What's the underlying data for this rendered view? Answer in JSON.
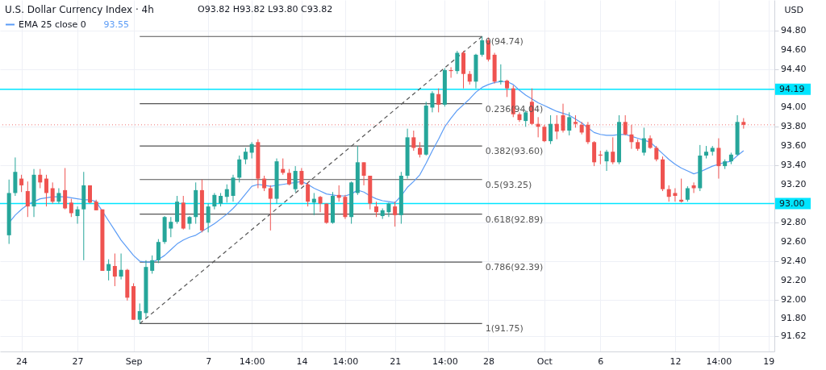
{
  "chart_data": {
    "type": "candlestick",
    "title": "U.S. Dollar Currency Index · 4h",
    "ylabel": "USD",
    "annotations": [
      "O93.82 H93.82 L93.80 C93.82",
      "93.55"
    ],
    "categories": [
      null,
      null,
      "24",
      null,
      null,
      null,
      null,
      null,
      null,
      null,
      null,
      "27",
      null,
      null,
      null,
      null,
      null,
      null,
      null,
      null,
      "Sep",
      null,
      null,
      null,
      null,
      null,
      null,
      null,
      null,
      null,
      null,
      null,
      "7",
      null,
      null,
      null,
      null,
      null,
      null,
      "14:00",
      null,
      null,
      null,
      null,
      null,
      null,
      null,
      "14",
      null,
      null,
      null,
      null,
      null,
      null,
      "14:00",
      null,
      null,
      null,
      null,
      null,
      null,
      null,
      "21",
      null,
      null,
      null,
      null,
      null,
      null,
      null,
      "14:00",
      null,
      null,
      null,
      null,
      null,
      null,
      "28",
      null,
      null,
      null,
      null,
      null,
      null,
      null,
      null,
      "Oct",
      null,
      null,
      null,
      null,
      null,
      null,
      null,
      null,
      "6",
      null,
      null,
      null,
      null,
      null,
      null,
      null,
      null,
      null,
      null,
      null,
      "12",
      null,
      null,
      null,
      null,
      null,
      null,
      "14:00",
      null,
      null,
      null,
      null,
      null,
      null,
      null,
      "19"
    ],
    "ohlc": [
      [
        92.67,
        93.25,
        92.58,
        93.11
      ],
      [
        93.11,
        93.48,
        93.08,
        93.33
      ],
      [
        93.26,
        93.3,
        93.12,
        93.19
      ],
      [
        93.13,
        93.23,
        92.86,
        92.97
      ],
      [
        92.97,
        93.36,
        92.86,
        93.3
      ],
      [
        93.3,
        93.36,
        93.16,
        93.22
      ],
      [
        93.26,
        93.3,
        92.97,
        93.11
      ],
      [
        93.16,
        93.22,
        93.0,
        93.02
      ],
      [
        93.02,
        93.16,
        93.0,
        93.11
      ],
      [
        93.14,
        93.37,
        92.94,
        92.95
      ],
      [
        93.01,
        93.05,
        92.86,
        92.9
      ],
      [
        92.87,
        92.97,
        92.79,
        92.94
      ],
      [
        92.94,
        93.33,
        92.41,
        93.19
      ],
      [
        93.19,
        93.19,
        93.0,
        93.01
      ],
      [
        93.02,
        93.04,
        92.93,
        92.93
      ],
      [
        92.94,
        92.94,
        92.3,
        92.3
      ],
      [
        92.3,
        92.42,
        92.2,
        92.37
      ],
      [
        92.35,
        92.48,
        92.14,
        92.24
      ],
      [
        92.24,
        92.48,
        92.21,
        92.31
      ],
      [
        92.31,
        92.32,
        91.99,
        92.02
      ],
      [
        92.14,
        92.17,
        91.79,
        91.79
      ],
      [
        91.79,
        91.96,
        91.75,
        91.88
      ],
      [
        91.86,
        92.41,
        91.81,
        92.34
      ],
      [
        92.3,
        92.46,
        92.27,
        92.41
      ],
      [
        92.41,
        92.63,
        92.38,
        92.6
      ],
      [
        92.6,
        92.87,
        92.58,
        92.86
      ],
      [
        92.74,
        92.86,
        92.65,
        92.81
      ],
      [
        92.81,
        93.08,
        92.79,
        93.02
      ],
      [
        93.01,
        93.08,
        92.73,
        92.74
      ],
      [
        92.79,
        92.87,
        92.73,
        92.86
      ],
      [
        92.86,
        93.22,
        92.79,
        93.14
      ],
      [
        93.14,
        93.25,
        92.7,
        92.72
      ],
      [
        92.8,
        93.0,
        92.7,
        92.97
      ],
      [
        92.97,
        93.11,
        92.94,
        93.09
      ],
      [
        93.0,
        93.11,
        92.97,
        93.08
      ],
      [
        93.07,
        93.2,
        93.01,
        93.15
      ],
      [
        93.08,
        93.3,
        93.02,
        93.27
      ],
      [
        93.27,
        93.5,
        93.22,
        93.46
      ],
      [
        93.46,
        93.58,
        93.41,
        93.54
      ],
      [
        93.53,
        93.64,
        93.47,
        93.62
      ],
      [
        93.64,
        93.67,
        93.16,
        93.26
      ],
      [
        93.26,
        93.29,
        93.13,
        93.16
      ],
      [
        93.16,
        93.19,
        92.72,
        93.05
      ],
      [
        93.05,
        93.47,
        93.0,
        93.44
      ],
      [
        93.36,
        93.47,
        93.3,
        93.32
      ],
      [
        93.32,
        93.36,
        93.19,
        93.2
      ],
      [
        93.15,
        93.39,
        93.12,
        93.34
      ],
      [
        93.34,
        93.37,
        93.19,
        93.2
      ],
      [
        93.2,
        93.22,
        92.97,
        93.02
      ],
      [
        93.01,
        93.11,
        92.88,
        93.05
      ],
      [
        93.07,
        93.08,
        92.91,
        93.0
      ],
      [
        93.0,
        93.0,
        92.79,
        92.8
      ],
      [
        92.8,
        93.12,
        92.79,
        93.08
      ],
      [
        93.09,
        93.19,
        93.02,
        93.06
      ],
      [
        93.07,
        93.09,
        92.84,
        92.86
      ],
      [
        92.86,
        93.23,
        92.79,
        93.22
      ],
      [
        93.11,
        93.6,
        93.09,
        93.43
      ],
      [
        93.43,
        93.43,
        93.19,
        93.29
      ],
      [
        93.29,
        93.29,
        92.94,
        93.0
      ],
      [
        92.97,
        93.02,
        92.86,
        92.91
      ],
      [
        92.87,
        92.95,
        92.84,
        92.93
      ],
      [
        92.91,
        93.01,
        92.86,
        93.0
      ],
      [
        92.97,
        93.02,
        92.76,
        92.88
      ],
      [
        92.88,
        93.33,
        92.79,
        93.29
      ],
      [
        93.29,
        93.78,
        93.26,
        93.69
      ],
      [
        93.69,
        93.76,
        93.55,
        93.58
      ],
      [
        93.58,
        93.64,
        93.48,
        93.51
      ],
      [
        93.51,
        94.06,
        93.5,
        94.02
      ],
      [
        94.0,
        94.17,
        93.95,
        94.15
      ],
      [
        94.14,
        94.2,
        93.95,
        94.03
      ],
      [
        94.03,
        94.41,
        94.01,
        94.39
      ],
      [
        94.39,
        94.42,
        94.31,
        94.38
      ],
      [
        94.38,
        94.59,
        94.35,
        94.57
      ],
      [
        94.57,
        94.59,
        94.2,
        94.35
      ],
      [
        94.35,
        94.38,
        94.24,
        94.27
      ],
      [
        94.27,
        94.56,
        94.2,
        94.55
      ],
      [
        94.55,
        94.74,
        94.53,
        94.7
      ],
      [
        94.7,
        94.73,
        94.48,
        94.5
      ],
      [
        94.55,
        94.57,
        94.25,
        94.27
      ],
      [
        94.27,
        94.45,
        94.24,
        94.28
      ],
      [
        94.28,
        94.29,
        94.11,
        94.2
      ],
      [
        94.2,
        94.23,
        93.9,
        93.93
      ],
      [
        93.93,
        93.95,
        93.85,
        93.87
      ],
      [
        93.86,
        93.97,
        93.8,
        93.95
      ],
      [
        94.06,
        94.2,
        93.82,
        93.83
      ],
      [
        93.83,
        93.9,
        93.69,
        93.8
      ],
      [
        93.8,
        93.82,
        93.64,
        93.65
      ],
      [
        93.65,
        93.92,
        93.62,
        93.83
      ],
      [
        93.83,
        93.92,
        93.67,
        93.75
      ],
      [
        93.92,
        94.04,
        93.74,
        93.76
      ],
      [
        93.76,
        93.95,
        93.71,
        93.9
      ],
      [
        93.85,
        93.92,
        93.79,
        93.83
      ],
      [
        93.82,
        93.85,
        93.72,
        93.74
      ],
      [
        93.82,
        93.85,
        93.62,
        93.64
      ],
      [
        93.64,
        93.65,
        93.39,
        93.43
      ],
      [
        93.51,
        93.55,
        93.41,
        93.5
      ],
      [
        93.44,
        93.56,
        93.34,
        93.54
      ],
      [
        93.54,
        93.69,
        93.41,
        93.43
      ],
      [
        93.43,
        93.92,
        93.41,
        93.85
      ],
      [
        93.85,
        93.92,
        93.71,
        93.72
      ],
      [
        93.72,
        93.82,
        93.57,
        93.64
      ],
      [
        93.64,
        93.67,
        93.55,
        93.57
      ],
      [
        93.53,
        93.79,
        93.5,
        93.68
      ],
      [
        93.68,
        93.71,
        93.57,
        93.58
      ],
      [
        93.58,
        93.6,
        93.44,
        93.46
      ],
      [
        93.46,
        93.49,
        93.13,
        93.15
      ],
      [
        93.15,
        93.19,
        93.02,
        93.07
      ],
      [
        93.11,
        93.16,
        93.02,
        93.08
      ],
      [
        93.04,
        93.26,
        93.01,
        93.02
      ],
      [
        93.04,
        93.18,
        93.02,
        93.16
      ],
      [
        93.19,
        93.22,
        93.11,
        93.16
      ],
      [
        93.16,
        93.61,
        93.13,
        93.5
      ],
      [
        93.5,
        93.6,
        93.47,
        93.54
      ],
      [
        93.54,
        93.6,
        93.5,
        93.58
      ],
      [
        93.58,
        93.68,
        93.26,
        93.39
      ],
      [
        93.39,
        93.46,
        93.36,
        93.44
      ],
      [
        93.44,
        93.53,
        93.41,
        93.51
      ],
      [
        93.51,
        93.92,
        93.5,
        93.85
      ],
      [
        93.85,
        93.89,
        93.78,
        93.82
      ],
      null,
      null,
      null,
      null
    ],
    "colors": [
      "#26a69a",
      "#26a69a",
      "#ef5350",
      "#ef5350",
      "#26a69a",
      "#ef5350",
      "#ef5350",
      "#ef5350",
      "#26a69a",
      "#ef5350",
      "#ef5350",
      "#26a69a",
      "#26a69a",
      "#ef5350",
      "#ef5350",
      "#ef5350",
      "#26a69a",
      "#ef5350",
      "#26a69a",
      "#ef5350",
      "#ef5350",
      "#26a69a",
      "#26a69a",
      "#26a69a",
      "#26a69a",
      "#26a69a",
      "#26a69a",
      "#26a69a",
      "#ef5350",
      "#26a69a",
      "#26a69a",
      "#ef5350",
      "#26a69a",
      "#26a69a",
      "#26a69a",
      "#26a69a",
      "#26a69a",
      "#26a69a",
      "#26a69a",
      "#26a69a",
      "#ef5350",
      "#ef5350",
      "#ef5350",
      "#26a69a",
      "#ef5350",
      "#ef5350",
      "#26a69a",
      "#ef5350",
      "#ef5350",
      "#26a69a",
      "#ef5350",
      "#ef5350",
      "#26a69a",
      "#ef5350",
      "#ef5350",
      "#26a69a",
      "#26a69a",
      "#ef5350",
      "#ef5350",
      "#ef5350",
      "#26a69a",
      "#26a69a",
      "#ef5350",
      "#26a69a",
      "#26a69a",
      "#ef5350",
      "#ef5350",
      "#26a69a",
      "#26a69a",
      "#ef5350",
      "#26a69a",
      "#ef5350",
      "#26a69a",
      "#ef5350",
      "#ef5350",
      "#26a69a",
      "#26a69a",
      "#ef5350",
      "#ef5350",
      "#26a69a",
      "#ef5350",
      "#ef5350",
      "#ef5350",
      "#26a69a",
      "#ef5350",
      "#ef5350",
      "#ef5350",
      "#26a69a",
      "#ef5350",
      "#ef5350",
      "#26a69a",
      "#ef5350",
      "#ef5350",
      "#ef5350",
      "#ef5350",
      "#ef5350",
      "#26a69a",
      "#ef5350",
      "#26a69a",
      "#ef5350",
      "#ef5350",
      "#ef5350",
      "#26a69a",
      "#ef5350",
      "#ef5350",
      "#ef5350",
      "#ef5350",
      "#ef5350",
      "#ef5350",
      "#26a69a",
      "#ef5350",
      "#26a69a",
      "#26a69a",
      "#26a69a",
      "#ef5350",
      "#26a69a",
      "#26a69a",
      "#26a69a",
      "#ef5350",
      null,
      null,
      null,
      null
    ],
    "series": [
      {
        "type": "line",
        "name": "EMA 25 close 0",
        "color": "#5b9cf6",
        "values": [
          92.8,
          92.88,
          92.94,
          92.99,
          93.02,
          93.05,
          93.06,
          93.07,
          93.07,
          93.07,
          93.06,
          93.05,
          93.04,
          93.04,
          93.02,
          92.92,
          92.82,
          92.72,
          92.62,
          92.54,
          92.46,
          92.4,
          92.39,
          92.39,
          92.42,
          92.46,
          92.52,
          92.58,
          92.62,
          92.65,
          92.67,
          92.71,
          92.75,
          92.79,
          92.84,
          92.89,
          92.95,
          93.02,
          93.1,
          93.18,
          93.2,
          93.19,
          93.18,
          93.19,
          93.2,
          93.21,
          93.22,
          93.23,
          93.2,
          93.16,
          93.13,
          93.1,
          93.09,
          93.08,
          93.08,
          93.1,
          93.14,
          93.12,
          93.08,
          93.05,
          93.03,
          93.02,
          93.01,
          93.08,
          93.17,
          93.23,
          93.3,
          93.42,
          93.55,
          93.67,
          93.8,
          93.89,
          93.97,
          94.03,
          94.09,
          94.16,
          94.21,
          94.24,
          94.26,
          94.27,
          94.27,
          94.24,
          94.18,
          94.13,
          94.09,
          94.05,
          94.02,
          93.99,
          93.96,
          93.94,
          93.92,
          93.88,
          93.84,
          93.79,
          93.74,
          93.72,
          93.71,
          93.71,
          93.72,
          93.72,
          93.7,
          93.68,
          93.66,
          93.64,
          93.58,
          93.52,
          93.46,
          93.41,
          93.37,
          93.34,
          93.31,
          93.33,
          93.36,
          93.39,
          93.41,
          93.43,
          93.44,
          93.5,
          93.55,
          null,
          null,
          null,
          null
        ]
      },
      {
        "type": "line",
        "color": "#555555",
        "line_style": "dashed",
        "values": [
          null,
          null,
          null,
          null,
          null,
          null,
          null,
          null,
          null,
          null,
          null,
          null,
          null,
          null,
          null,
          null,
          null,
          null,
          null,
          null,
          null,
          91.75,
          null,
          null,
          null,
          null,
          null,
          null,
          null,
          null,
          null,
          null,
          null,
          null,
          null,
          null,
          null,
          null,
          null,
          null,
          null,
          null,
          null,
          null,
          null,
          null,
          null,
          null,
          null,
          null,
          null,
          null,
          null,
          null,
          null,
          null,
          null,
          null,
          null,
          null,
          null,
          null,
          null,
          null,
          null,
          null,
          null,
          null,
          null,
          null,
          null,
          null,
          null,
          null,
          null,
          null,
          94.74,
          null,
          null,
          null,
          null,
          null,
          null,
          null,
          null,
          null,
          null,
          null,
          null,
          null,
          null,
          null,
          null,
          null,
          null,
          null,
          null,
          null,
          null,
          null,
          null,
          null,
          null,
          null,
          null,
          null,
          null,
          null,
          null,
          null,
          null,
          null,
          null,
          null,
          null,
          null,
          null,
          null,
          null,
          null,
          null,
          null,
          null
        ]
      }
    ],
    "ref_lines": [
      {
        "axis": "y",
        "value": 94.74,
        "label": "0(94.74)"
      },
      {
        "axis": "y",
        "value": 94.04,
        "label": "0.236(94.04)"
      },
      {
        "axis": "y",
        "value": 93.6,
        "label": "0.382(93.60)"
      },
      {
        "axis": "y",
        "value": 93.25,
        "label": "0.5(93.25)"
      },
      {
        "axis": "y",
        "value": 92.89,
        "label": "0.618(92.89)"
      },
      {
        "axis": "y",
        "value": 92.39,
        "label": "0.786(92.39)"
      },
      {
        "axis": "y",
        "value": 91.75,
        "label": "1(91.75)"
      },
      {
        "axis": "y",
        "value": 94.19,
        "label": "94.19",
        "color": "#00e5ff"
      },
      {
        "axis": "y",
        "value": 93.0,
        "label": "93.00",
        "color": "#00e5ff"
      },
      {
        "axis": "y",
        "value": 93.82,
        "color": "#f5a3a3",
        "line_style": "dotted"
      }
    ],
    "ylim": [
      91.46,
      95.12
    ],
    "yticks": [
      {
        "value": 91.62,
        "label": "91.62"
      },
      {
        "value": 91.8,
        "label": "91.80"
      },
      {
        "value": 92.0,
        "label": "92.00"
      },
      {
        "value": 92.2,
        "label": "92.20"
      },
      {
        "value": 92.4,
        "label": "92.40"
      },
      {
        "value": 92.6,
        "label": "92.60"
      },
      {
        "value": 92.8,
        "label": "92.80"
      },
      {
        "value": 93.2,
        "label": "93.20"
      },
      {
        "value": 93.4,
        "label": "93.40"
      },
      {
        "value": 93.6,
        "label": "93.60"
      },
      {
        "value": 93.8,
        "label": "93.80"
      },
      {
        "value": 94.0,
        "label": "94.00"
      },
      {
        "value": 94.4,
        "label": "94.40"
      },
      {
        "value": 94.6,
        "label": "94.60"
      },
      {
        "value": 94.8,
        "label": "94.80"
      }
    ],
    "grid": true,
    "legend": "top left"
  }
}
